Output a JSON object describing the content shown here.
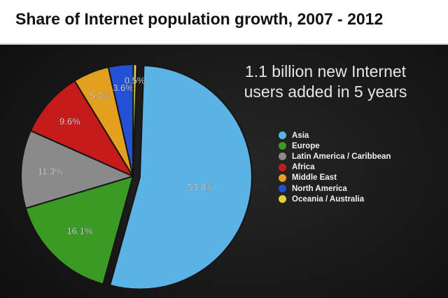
{
  "chart_data": {
    "type": "pie",
    "title": "Share of Internet population growth, 2007 - 2012",
    "subtitle_lines": [
      "1.1 billion new Internet",
      "users added in 5 years"
    ],
    "legend_position": "right",
    "slices": [
      {
        "name": "Asia",
        "value": 53.8,
        "label": "53.8%",
        "color": "#5bb2e4"
      },
      {
        "name": "Europe",
        "value": 16.1,
        "label": "16.1%",
        "color": "#3a9a25"
      },
      {
        "name": "Latin America / Caribbean",
        "value": 11.3,
        "label": "11.3%",
        "color": "#8a8a8a"
      },
      {
        "name": "Africa",
        "value": 9.6,
        "label": "9.6%",
        "color": "#c61b1b"
      },
      {
        "name": "Middle East",
        "value": 5.2,
        "label": "5.2%",
        "color": "#e3a020"
      },
      {
        "name": "North America",
        "value": 3.6,
        "label": "3.6%",
        "color": "#2450d6"
      },
      {
        "name": "Oceania / Australia",
        "value": 0.5,
        "label": "0.5%",
        "color": "#e3cf3a"
      }
    ]
  }
}
